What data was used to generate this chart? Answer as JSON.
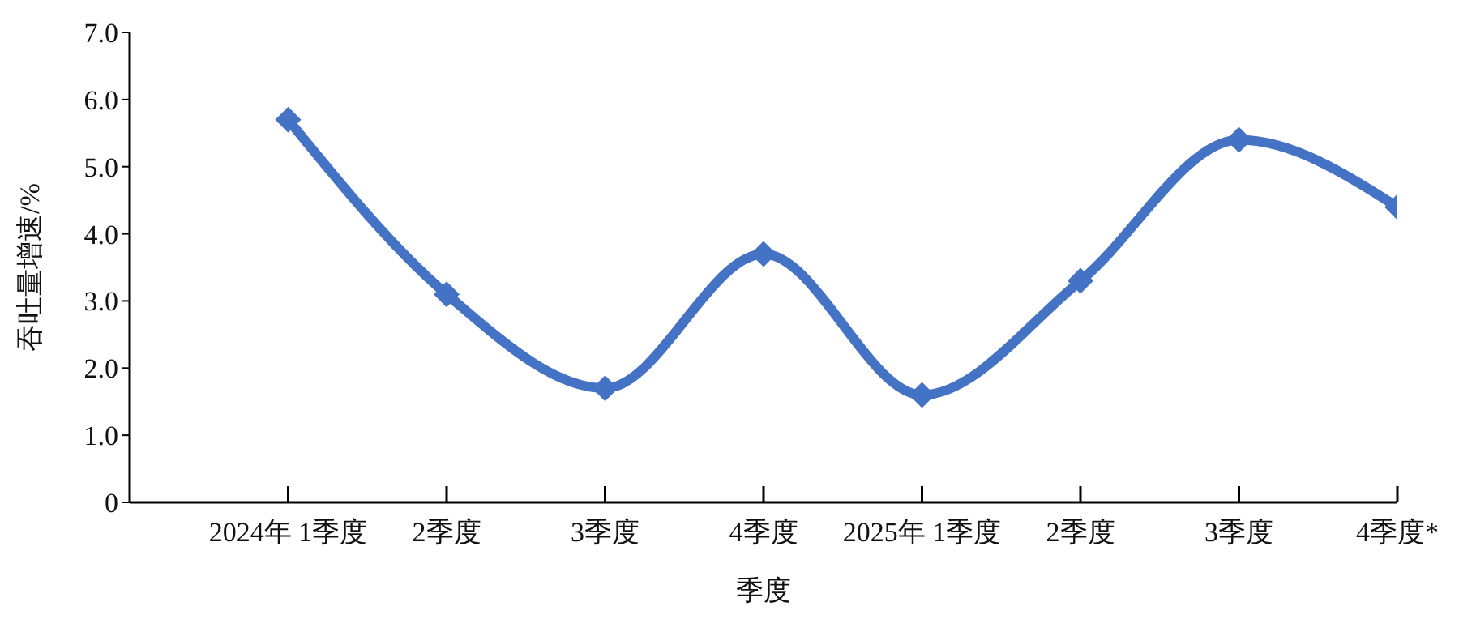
{
  "chart_data": {
    "type": "line",
    "xlabel": "季度",
    "ylabel": "吞吐量增速/%",
    "categories": [
      "2024年 1季度",
      "2季度",
      "3季度",
      "4季度",
      "2025年 1季度",
      "2季度",
      "3季度",
      "4季度*"
    ],
    "series": [
      {
        "color": "#4472c4",
        "values": [
          5.7,
          3.1,
          1.7,
          3.7,
          1.6,
          3.3,
          5.4,
          4.4
        ]
      }
    ],
    "ylim": [
      0,
      7
    ],
    "yticks": [
      {
        "value": 0,
        "label": "0"
      },
      {
        "value": 1,
        "label": "1.0"
      },
      {
        "value": 2,
        "label": "2.0"
      },
      {
        "value": 3,
        "label": "3.0"
      },
      {
        "value": 4,
        "label": "4.0"
      },
      {
        "value": 5,
        "label": "5.0"
      },
      {
        "value": 6,
        "label": "6.0"
      },
      {
        "value": 7,
        "label": "7.0"
      }
    ],
    "grid": false,
    "legend": false,
    "marker": "diamond",
    "line_style": "solid"
  }
}
